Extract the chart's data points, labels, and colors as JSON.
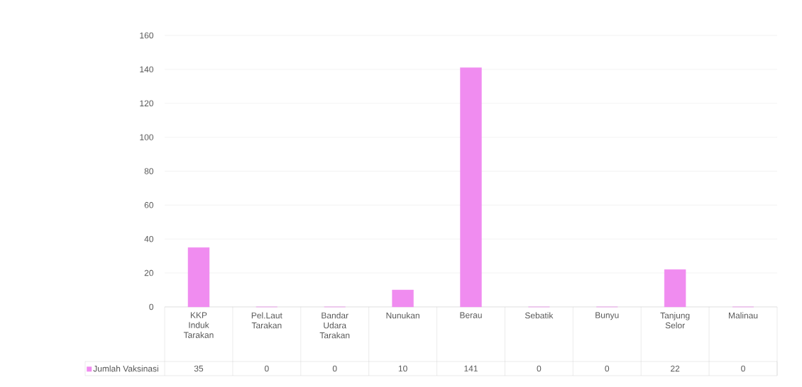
{
  "chart_data": {
    "type": "bar",
    "categories": [
      "KKP Induk Tarakan",
      "Pel.Laut Tarakan",
      "Bandar Udara Tarakan",
      "Nunukan",
      "Berau",
      "Sebatik",
      "Bunyu",
      "Tanjung Selor",
      "Malinau"
    ],
    "series": [
      {
        "name": "Jumlah Vaksinasi",
        "color": "#f08cf0",
        "values": [
          35,
          0,
          0,
          10,
          141,
          0,
          0,
          22,
          0
        ]
      }
    ],
    "ylim": [
      0,
      160
    ],
    "yticks": [
      0,
      20,
      40,
      60,
      80,
      100,
      120,
      140,
      160
    ],
    "grid": "y",
    "legend": "bottom left",
    "data_labels": true
  }
}
